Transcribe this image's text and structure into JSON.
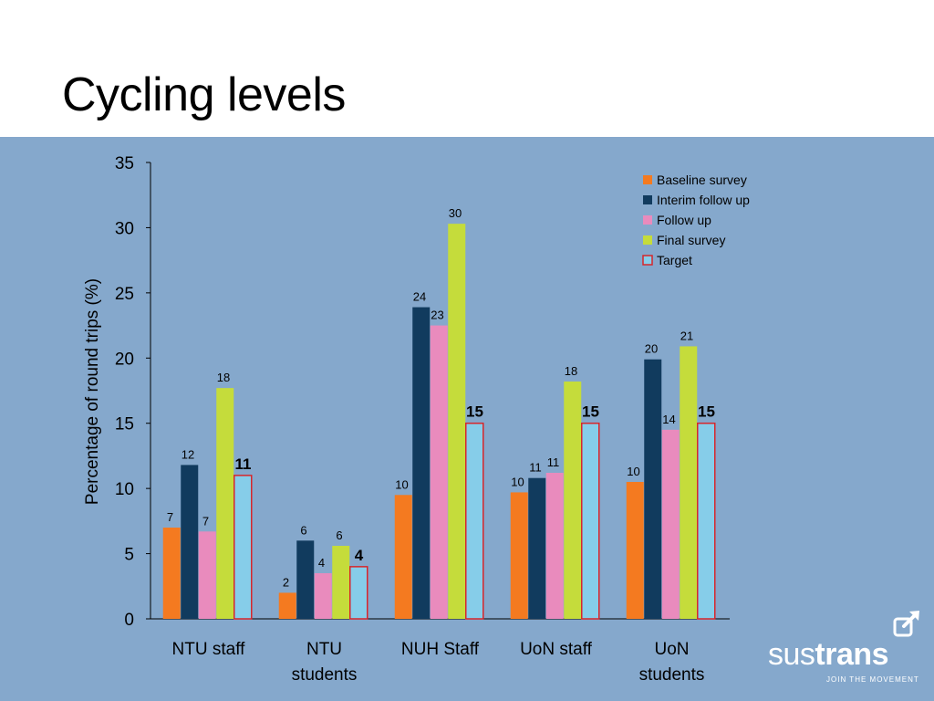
{
  "slide": {
    "title": "Cycling levels"
  },
  "colors": {
    "background_panel": "#85a8cc",
    "axis": "#000000"
  },
  "chart_data": {
    "type": "bar",
    "title": "",
    "xlabel": "",
    "ylabel": "Percentage of round trips (%)",
    "ylim": [
      0,
      35
    ],
    "yticks": [
      0,
      5,
      10,
      15,
      20,
      25,
      30,
      35
    ],
    "grid": false,
    "legend_position": "top-right",
    "categories": [
      [
        "NTU staff"
      ],
      [
        "NTU",
        "students"
      ],
      [
        "NUH Staff"
      ],
      [
        "UoN staff"
      ],
      [
        "UoN",
        "students"
      ]
    ],
    "series": [
      {
        "name": "Baseline survey",
        "color": "#f47a20",
        "values": [
          7,
          2,
          9.5,
          9.7,
          10.5
        ],
        "labels": [
          "7",
          "2",
          "10",
          "10",
          "10"
        ],
        "bold_labels": false
      },
      {
        "name": "Interim follow up",
        "color": "#113b5e",
        "values": [
          11.8,
          6,
          23.9,
          10.8,
          19.9
        ],
        "labels": [
          "12",
          "6",
          "24",
          "11",
          "20"
        ],
        "bold_labels": false
      },
      {
        "name": "Follow up",
        "color": "#e98bbd",
        "values": [
          6.7,
          3.5,
          22.5,
          11.2,
          14.5
        ],
        "labels": [
          "7",
          "4",
          "23",
          "11",
          "14"
        ],
        "bold_labels": false
      },
      {
        "name": "Final survey",
        "color": "#c5dc3b",
        "values": [
          17.7,
          5.6,
          30.3,
          18.2,
          20.9
        ],
        "labels": [
          "18",
          "6",
          "30",
          "18",
          "21"
        ],
        "bold_labels": false
      },
      {
        "name": "Target",
        "color": "#86cde9",
        "border": "#d7262b",
        "values": [
          11,
          4,
          15,
          15,
          15
        ],
        "labels": [
          "11",
          "4",
          "15",
          "15",
          "15"
        ],
        "bold_labels": true
      }
    ]
  },
  "logo": {
    "word_light": "sus",
    "word_bold": "trans",
    "tagline": "JOIN THE MOVEMENT",
    "icon": "share-arrow-icon"
  }
}
